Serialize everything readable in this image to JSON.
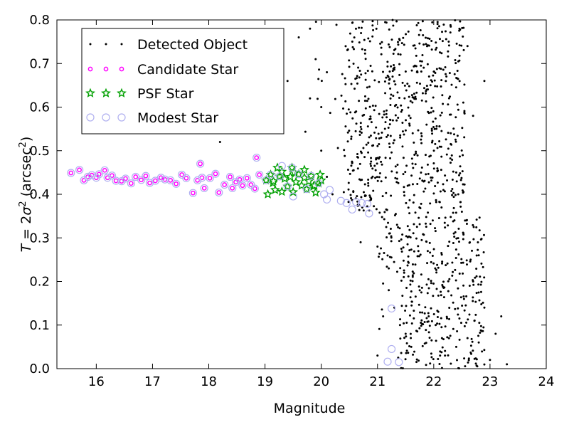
{
  "chart_data": {
    "type": "scatter",
    "xlabel": "Magnitude",
    "ylabel_parts": {
      "T": "T",
      "eq": " = 2",
      "sigma": "σ",
      "sup2": "2",
      "unit_open": " (arcsec",
      "unit_close": ")"
    },
    "xlim": [
      15.3,
      24
    ],
    "ylim": [
      0.0,
      0.8
    ],
    "xticks": [
      "16",
      "17",
      "18",
      "19",
      "20",
      "21",
      "22",
      "23",
      "24"
    ],
    "yticks": [
      "0.0",
      "0.1",
      "0.2",
      "0.3",
      "0.4",
      "0.5",
      "0.6",
      "0.7",
      "0.8"
    ],
    "grid": false,
    "legend_position": "top-left",
    "series": [
      {
        "name": "Detected Object",
        "marker": "dot",
        "color": "#000000",
        "note": "dense cloud of faint objects",
        "points": [
          [
            18.2,
            0.52
          ],
          [
            19.4,
            0.66
          ],
          [
            19.8,
            0.62
          ],
          [
            19.9,
            0.71
          ],
          [
            20.0,
            0.6
          ],
          [
            20.1,
            0.68
          ],
          [
            19.6,
            0.76
          ],
          [
            19.8,
            0.78
          ],
          [
            19.2,
            0.64
          ],
          [
            20.0,
            0.5
          ],
          [
            20.1,
            0.44
          ],
          [
            20.2,
            0.4
          ],
          [
            20.7,
            0.29
          ],
          [
            21.0,
            0.28
          ],
          [
            21.2,
            0.23
          ],
          [
            21.2,
            0.18
          ],
          [
            21.3,
            0.14
          ],
          [
            21.1,
            0.12
          ],
          [
            21.0,
            0.03
          ],
          [
            21.4,
            0.1
          ],
          [
            21.5,
            0.08
          ],
          [
            21.6,
            0.05
          ],
          [
            22.2,
            0.03
          ],
          [
            22.4,
            0.05
          ],
          [
            22.6,
            0.07
          ],
          [
            22.8,
            0.06
          ],
          [
            23.0,
            0.02
          ],
          [
            23.1,
            0.08
          ],
          [
            23.2,
            0.12
          ],
          [
            23.3,
            0.01
          ],
          [
            22.9,
            0.14
          ],
          [
            22.7,
            0.2
          ],
          [
            22.8,
            0.26
          ],
          [
            22.5,
            0.36
          ],
          [
            22.4,
            0.45
          ],
          [
            22.7,
            0.58
          ],
          [
            22.9,
            0.66
          ],
          [
            22.6,
            0.74
          ]
        ],
        "random_cloud": {
          "count": 1000,
          "x_range": [
            19.7,
            22.9
          ],
          "y_range": [
            0.0,
            0.8
          ],
          "seed": 7
        }
      },
      {
        "name": "Candidate Star",
        "marker": "circle-small",
        "color": "#ff00ff",
        "points": [
          [
            15.55,
            0.449
          ],
          [
            15.7,
            0.456
          ],
          [
            15.78,
            0.432
          ],
          [
            15.85,
            0.44
          ],
          [
            15.92,
            0.444
          ],
          [
            16.0,
            0.438
          ],
          [
            16.05,
            0.446
          ],
          [
            16.15,
            0.455
          ],
          [
            16.2,
            0.438
          ],
          [
            16.28,
            0.443
          ],
          [
            16.35,
            0.431
          ],
          [
            16.45,
            0.43
          ],
          [
            16.52,
            0.436
          ],
          [
            16.62,
            0.425
          ],
          [
            16.7,
            0.44
          ],
          [
            16.8,
            0.433
          ],
          [
            16.88,
            0.442
          ],
          [
            16.95,
            0.426
          ],
          [
            17.05,
            0.431
          ],
          [
            17.15,
            0.438
          ],
          [
            17.22,
            0.434
          ],
          [
            17.32,
            0.432
          ],
          [
            17.42,
            0.424
          ],
          [
            17.52,
            0.445
          ],
          [
            17.6,
            0.437
          ],
          [
            17.72,
            0.403
          ],
          [
            17.8,
            0.432
          ],
          [
            17.88,
            0.438
          ],
          [
            17.92,
            0.414
          ],
          [
            18.02,
            0.437
          ],
          [
            18.12,
            0.447
          ],
          [
            18.18,
            0.404
          ],
          [
            18.28,
            0.422
          ],
          [
            18.38,
            0.44
          ],
          [
            18.42,
            0.414
          ],
          [
            18.48,
            0.428
          ],
          [
            18.55,
            0.434
          ],
          [
            18.6,
            0.42
          ],
          [
            18.68,
            0.437
          ],
          [
            18.75,
            0.422
          ],
          [
            18.82,
            0.413
          ],
          [
            18.9,
            0.445
          ],
          [
            17.85,
            0.47
          ],
          [
            18.85,
            0.484
          ]
        ]
      },
      {
        "name": "PSF Star",
        "marker": "star",
        "color": "#00a000",
        "points": [
          [
            19.02,
            0.432
          ],
          [
            19.05,
            0.4
          ],
          [
            19.1,
            0.445
          ],
          [
            19.14,
            0.426
          ],
          [
            19.18,
            0.41
          ],
          [
            19.22,
            0.461
          ],
          [
            19.26,
            0.441
          ],
          [
            19.3,
            0.452
          ],
          [
            19.35,
            0.436
          ],
          [
            19.4,
            0.418
          ],
          [
            19.45,
            0.44
          ],
          [
            19.48,
            0.461
          ],
          [
            19.52,
            0.45
          ],
          [
            19.55,
            0.428
          ],
          [
            19.6,
            0.446
          ],
          [
            19.65,
            0.42
          ],
          [
            19.7,
            0.438
          ],
          [
            19.74,
            0.412
          ],
          [
            19.78,
            0.43
          ],
          [
            19.82,
            0.442
          ],
          [
            19.86,
            0.418
          ],
          [
            19.9,
            0.404
          ],
          [
            19.95,
            0.425
          ],
          [
            20.0,
            0.432
          ],
          [
            19.98,
            0.445
          ],
          [
            19.7,
            0.456
          ],
          [
            19.88,
            0.42
          ],
          [
            19.5,
            0.405
          ],
          [
            19.3,
            0.406
          ],
          [
            19.15,
            0.43
          ]
        ]
      },
      {
        "name": "Modest Star",
        "marker": "circle-large",
        "color": "#b0b0f0",
        "points": [
          [
            15.55,
            0.449
          ],
          [
            15.7,
            0.456
          ],
          [
            15.78,
            0.432
          ],
          [
            15.85,
            0.44
          ],
          [
            15.92,
            0.444
          ],
          [
            16.0,
            0.438
          ],
          [
            16.05,
            0.446
          ],
          [
            16.15,
            0.455
          ],
          [
            16.2,
            0.438
          ],
          [
            16.28,
            0.443
          ],
          [
            16.35,
            0.431
          ],
          [
            16.45,
            0.43
          ],
          [
            16.52,
            0.436
          ],
          [
            16.62,
            0.425
          ],
          [
            16.7,
            0.44
          ],
          [
            16.8,
            0.433
          ],
          [
            16.88,
            0.442
          ],
          [
            16.95,
            0.426
          ],
          [
            17.05,
            0.431
          ],
          [
            17.15,
            0.438
          ],
          [
            17.22,
            0.434
          ],
          [
            17.32,
            0.432
          ],
          [
            17.42,
            0.424
          ],
          [
            17.52,
            0.445
          ],
          [
            17.6,
            0.437
          ],
          [
            17.72,
            0.403
          ],
          [
            17.8,
            0.432
          ],
          [
            17.88,
            0.438
          ],
          [
            17.92,
            0.414
          ],
          [
            18.02,
            0.437
          ],
          [
            18.12,
            0.447
          ],
          [
            18.18,
            0.404
          ],
          [
            18.28,
            0.422
          ],
          [
            18.38,
            0.44
          ],
          [
            18.42,
            0.414
          ],
          [
            18.48,
            0.428
          ],
          [
            18.55,
            0.434
          ],
          [
            18.6,
            0.42
          ],
          [
            18.68,
            0.437
          ],
          [
            18.75,
            0.422
          ],
          [
            18.82,
            0.413
          ],
          [
            18.9,
            0.445
          ],
          [
            17.85,
            0.47
          ],
          [
            18.85,
            0.484
          ],
          [
            19.02,
            0.432
          ],
          [
            19.1,
            0.445
          ],
          [
            19.26,
            0.441
          ],
          [
            19.4,
            0.418
          ],
          [
            19.48,
            0.461
          ],
          [
            19.6,
            0.446
          ],
          [
            19.74,
            0.412
          ],
          [
            19.82,
            0.442
          ],
          [
            19.95,
            0.425
          ],
          [
            20.05,
            0.4
          ],
          [
            20.1,
            0.388
          ],
          [
            20.15,
            0.41
          ],
          [
            20.35,
            0.385
          ],
          [
            20.45,
            0.38
          ],
          [
            20.55,
            0.365
          ],
          [
            20.62,
            0.382
          ],
          [
            20.72,
            0.38
          ],
          [
            20.82,
            0.378
          ],
          [
            20.85,
            0.356
          ],
          [
            19.5,
            0.395
          ],
          [
            19.3,
            0.465
          ],
          [
            21.25,
            0.138
          ],
          [
            21.25,
            0.045
          ],
          [
            21.18,
            0.016
          ],
          [
            21.38,
            0.015
          ]
        ]
      }
    ]
  }
}
